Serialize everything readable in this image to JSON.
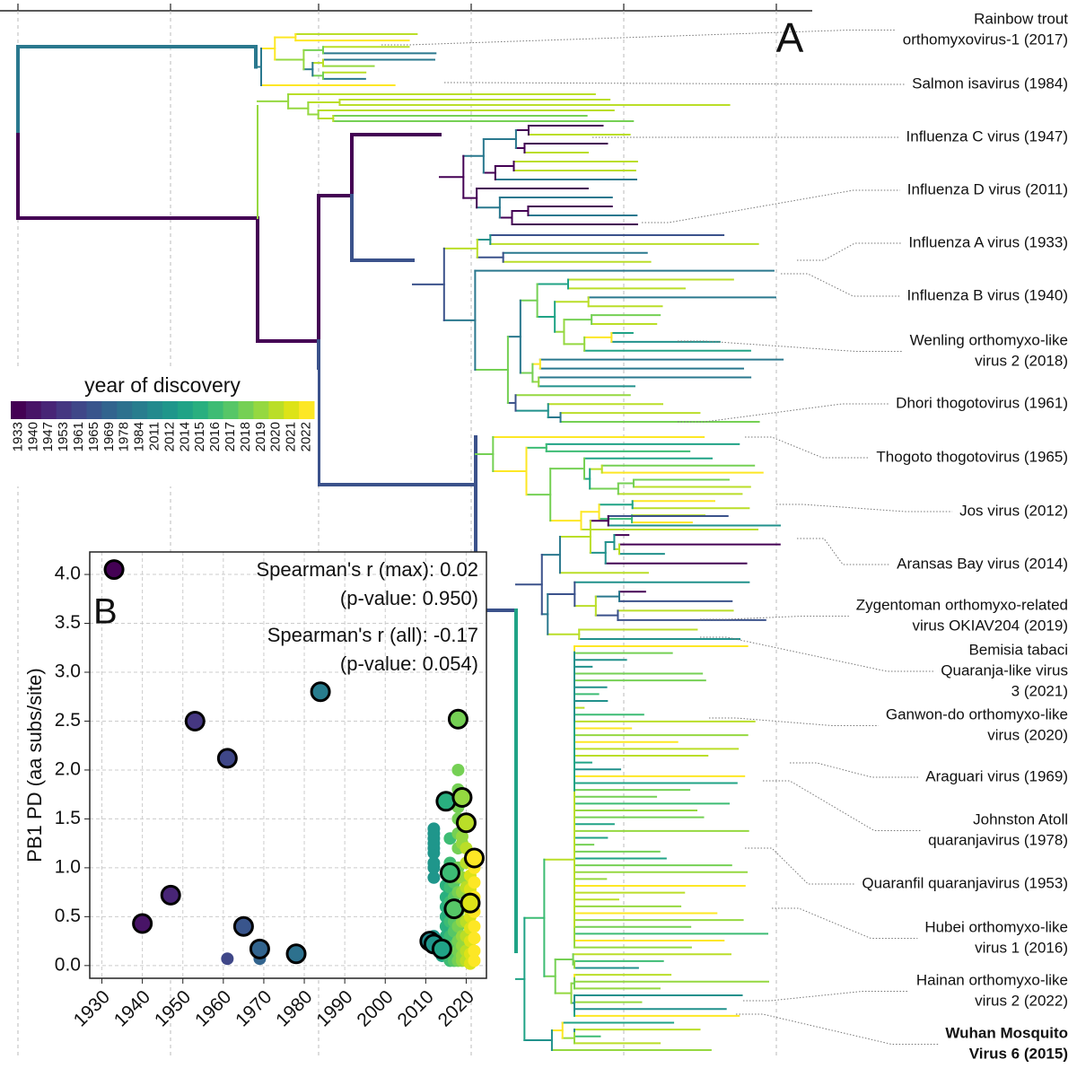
{
  "chart_data": [
    {
      "type": "tree",
      "panel_label": "A",
      "leaves": [
        {
          "lines": [
            "Rainbow trout",
            "orthomyxovirus-1 (2017)"
          ]
        },
        {
          "lines": [
            "Salmon isavirus (1984)"
          ]
        },
        {
          "lines": [
            "Influenza C virus (1947)"
          ]
        },
        {
          "lines": [
            "Influenza D virus (2011)"
          ]
        },
        {
          "lines": [
            "Influenza A virus (1933)"
          ]
        },
        {
          "lines": [
            "Influenza B virus (1940)"
          ]
        },
        {
          "lines": [
            "Wenling orthomyxo-like",
            "virus 2 (2018)"
          ]
        },
        {
          "lines": [
            "Dhori thogotovirus (1961)"
          ]
        },
        {
          "lines": [
            "Thogoto thogotovirus (1965)"
          ]
        },
        {
          "lines": [
            "Jos virus (2012)"
          ]
        },
        {
          "lines": [
            "Aransas Bay virus (2014)"
          ]
        },
        {
          "lines": [
            "Zygentoman orthomyxo-related",
            "virus OKIAV204 (2019)"
          ]
        },
        {
          "lines": [
            "Bemisia tabaci",
            "Quaranja-like virus",
            "3 (2021)"
          ]
        },
        {
          "lines": [
            "Ganwon-do orthomyxo-like",
            "virus (2020)"
          ]
        },
        {
          "lines": [
            "Araguari virus (1969)"
          ]
        },
        {
          "lines": [
            "Johnston Atoll",
            "quaranjavirus (1978)"
          ]
        },
        {
          "lines": [
            "Quaranfil quaranjavirus (1953)"
          ]
        },
        {
          "lines": [
            "Hubei orthomyxo-like",
            "virus 1 (2016)"
          ]
        },
        {
          "lines": [
            "Hainan orthomyxo-like",
            "virus 2 (2022)"
          ]
        },
        {
          "lines": [
            "Wuhan Mosquito",
            "Virus 6 (2015)"
          ],
          "bold": true
        }
      ],
      "colorbar": {
        "title": "year of discovery",
        "ticks": [
          1933,
          1940,
          1947,
          1953,
          1961,
          1965,
          1969,
          1978,
          1984,
          2011,
          2012,
          2014,
          2015,
          2016,
          2017,
          2018,
          2019,
          2020,
          2021,
          2022
        ],
        "colors": [
          "#440154",
          "#481467",
          "#482576",
          "#453781",
          "#3f4788",
          "#39558c",
          "#32648e",
          "#2d718e",
          "#287d8e",
          "#238a8d",
          "#1f968b",
          "#20a386",
          "#29af7f",
          "#3dbc74",
          "#56c667",
          "#75d054",
          "#95d840",
          "#bade28",
          "#dde318",
          "#fde725"
        ]
      }
    },
    {
      "type": "scatter",
      "panel_label": "B",
      "ylabel": "PB1 PD (aa subs/site)",
      "annotations": [
        "Spearman's r (max): 0.02",
        "(p-value: 0.950)",
        "Spearman's r (all): -0.17",
        "(p-value: 0.054)"
      ],
      "xlim": [
        1927,
        2025
      ],
      "xticks": [
        1930,
        1940,
        1950,
        1960,
        1970,
        1980,
        1990,
        2000,
        2010,
        2020
      ],
      "ylim": [
        -0.13,
        4.23
      ],
      "yticks": [
        {
          "value": 0,
          "label": "0.0"
        },
        {
          "value": 0.5,
          "label": "0.5"
        },
        {
          "value": 1,
          "label": "1.0"
        },
        {
          "value": 1.5,
          "label": "1.5"
        },
        {
          "value": 2,
          "label": "2.0"
        },
        {
          "value": 2.5,
          "label": "2.5"
        },
        {
          "value": 3,
          "label": "3.0"
        },
        {
          "value": 3.5,
          "label": "3.5"
        },
        {
          "value": 4,
          "label": "4.0"
        }
      ],
      "grid": true,
      "series": [
        {
          "x": [
            1961,
            1969,
            2012,
            2012,
            2012,
            2012,
            2012,
            2012,
            2012,
            2012,
            2012,
            2012,
            2014,
            2014,
            2014,
            2015,
            2015,
            2015,
            2015,
            2015,
            2015,
            2015,
            2015,
            2016,
            2016,
            2016,
            2016,
            2016,
            2016,
            2016,
            2016,
            2017,
            2017,
            2017,
            2017,
            2017,
            2017,
            2017,
            2018,
            2018,
            2018,
            2018,
            2018,
            2018,
            2018,
            2018,
            2018,
            2018,
            2018,
            2018,
            2018,
            2018,
            2019,
            2019,
            2019,
            2019,
            2019,
            2019,
            2019,
            2019,
            2019,
            2019,
            2020,
            2020,
            2020,
            2020,
            2020,
            2020,
            2020,
            2020,
            2021,
            2021,
            2021,
            2021,
            2021,
            2021,
            2021,
            2021,
            2022,
            2022,
            2022,
            2022,
            2022,
            2022,
            2022,
            2022
          ],
          "values": [
            0.07,
            0.07,
            0.9,
            1.0,
            1.05,
            1.15,
            1.2,
            1.25,
            1.3,
            1.35,
            1.4,
            0.3,
            0.15,
            0.2,
            0.1,
            0.1,
            0.2,
            0.3,
            0.4,
            0.5,
            0.6,
            0.7,
            0.82,
            0.05,
            0.15,
            0.3,
            0.45,
            0.65,
            0.8,
            1.05,
            1.3,
            0.05,
            0.1,
            0.2,
            0.35,
            0.45,
            0.7,
            0.85,
            0.05,
            0.15,
            0.25,
            0.4,
            0.55,
            0.75,
            0.9,
            1.0,
            1.2,
            1.35,
            1.5,
            1.62,
            1.8,
            2.0,
            0.05,
            0.1,
            0.2,
            0.3,
            0.45,
            0.6,
            0.75,
            0.9,
            1.25,
            1.32,
            0.05,
            0.15,
            0.3,
            0.45,
            0.6,
            0.8,
            1.05,
            1.2,
            0.02,
            0.12,
            0.25,
            0.38,
            0.5,
            0.65,
            0.78,
            0.92,
            0.05,
            0.15,
            0.28,
            0.4,
            0.55,
            0.7,
            0.85,
            1.0
          ]
        },
        {
          "x": [
            1933,
            1940,
            1947,
            1953,
            1961,
            1965,
            1969,
            1978,
            1984,
            2011,
            2012,
            2014,
            2015,
            2016,
            2017,
            2018,
            2019,
            2020,
            2021,
            2022
          ],
          "values": [
            4.05,
            0.43,
            0.72,
            2.5,
            2.12,
            0.4,
            0.17,
            0.12,
            2.8,
            0.25,
            0.22,
            0.17,
            1.68,
            0.95,
            0.58,
            2.52,
            1.72,
            1.46,
            0.64,
            1.1
          ],
          "outline": "#000000"
        }
      ]
    }
  ]
}
